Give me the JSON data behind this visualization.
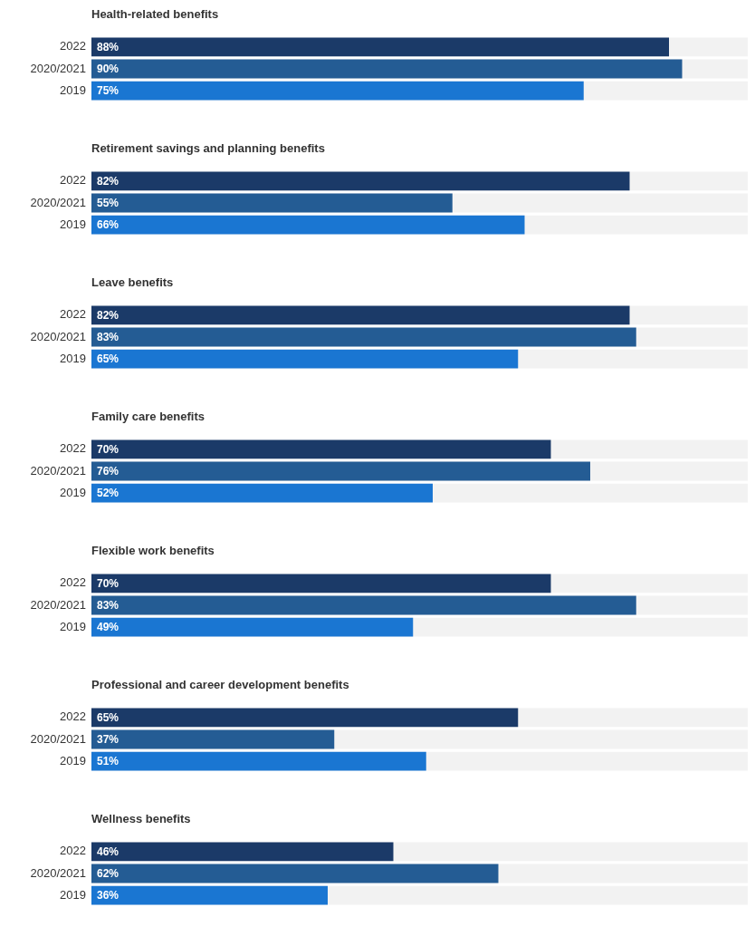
{
  "chart_data": [
    {
      "type": "bar",
      "orientation": "horizontal",
      "title": "Health-related benefits",
      "categories": [
        "2022",
        "2020/2021",
        "2019"
      ],
      "values": [
        88,
        90,
        75
      ],
      "value_labels": [
        "88%",
        "90%",
        "75%"
      ],
      "colors": [
        "#1b3a68",
        "#245c94",
        "#1a76d2"
      ],
      "xlim": [
        0,
        100
      ],
      "tick_labels": "y",
      "grid": false,
      "legend": false
    },
    {
      "type": "bar",
      "orientation": "horizontal",
      "title": "Retirement savings and planning benefits",
      "categories": [
        "2022",
        "2020/2021",
        "2019"
      ],
      "values": [
        82,
        55,
        66
      ],
      "value_labels": [
        "82%",
        "55%",
        "66%"
      ],
      "colors": [
        "#1b3a68",
        "#245c94",
        "#1a76d2"
      ],
      "xlim": [
        0,
        100
      ],
      "tick_labels": "y",
      "grid": false,
      "legend": false
    },
    {
      "type": "bar",
      "orientation": "horizontal",
      "title": "Leave benefits",
      "categories": [
        "2022",
        "2020/2021",
        "2019"
      ],
      "values": [
        82,
        83,
        65
      ],
      "value_labels": [
        "82%",
        "83%",
        "65%"
      ],
      "colors": [
        "#1b3a68",
        "#245c94",
        "#1a76d2"
      ],
      "xlim": [
        0,
        100
      ],
      "tick_labels": "y",
      "grid": false,
      "legend": false
    },
    {
      "type": "bar",
      "orientation": "horizontal",
      "title": "Family care benefits",
      "categories": [
        "2022",
        "2020/2021",
        "2019"
      ],
      "values": [
        70,
        76,
        52
      ],
      "value_labels": [
        "70%",
        "76%",
        "52%"
      ],
      "colors": [
        "#1b3a68",
        "#245c94",
        "#1a76d2"
      ],
      "xlim": [
        0,
        100
      ],
      "tick_labels": "y",
      "grid": false,
      "legend": false
    },
    {
      "type": "bar",
      "orientation": "horizontal",
      "title": "Flexible work benefits",
      "categories": [
        "2022",
        "2020/2021",
        "2019"
      ],
      "values": [
        70,
        83,
        49
      ],
      "value_labels": [
        "70%",
        "83%",
        "49%"
      ],
      "colors": [
        "#1b3a68",
        "#245c94",
        "#1a76d2"
      ],
      "xlim": [
        0,
        100
      ],
      "tick_labels": "y",
      "grid": false,
      "legend": false
    },
    {
      "type": "bar",
      "orientation": "horizontal",
      "title": "Professional and career development benefits",
      "categories": [
        "2022",
        "2020/2021",
        "2019"
      ],
      "values": [
        65,
        37,
        51
      ],
      "value_labels": [
        "65%",
        "37%",
        "51%"
      ],
      "colors": [
        "#1b3a68",
        "#245c94",
        "#1a76d2"
      ],
      "xlim": [
        0,
        100
      ],
      "tick_labels": "y",
      "grid": false,
      "legend": false
    },
    {
      "type": "bar",
      "orientation": "horizontal",
      "title": "Wellness benefits",
      "categories": [
        "2022",
        "2020/2021",
        "2019"
      ],
      "values": [
        46,
        62,
        36
      ],
      "value_labels": [
        "46%",
        "62%",
        "36%"
      ],
      "colors": [
        "#1b3a68",
        "#245c94",
        "#1a76d2"
      ],
      "xlim": [
        0,
        100
      ],
      "tick_labels": "y",
      "grid": false,
      "legend": false
    }
  ]
}
